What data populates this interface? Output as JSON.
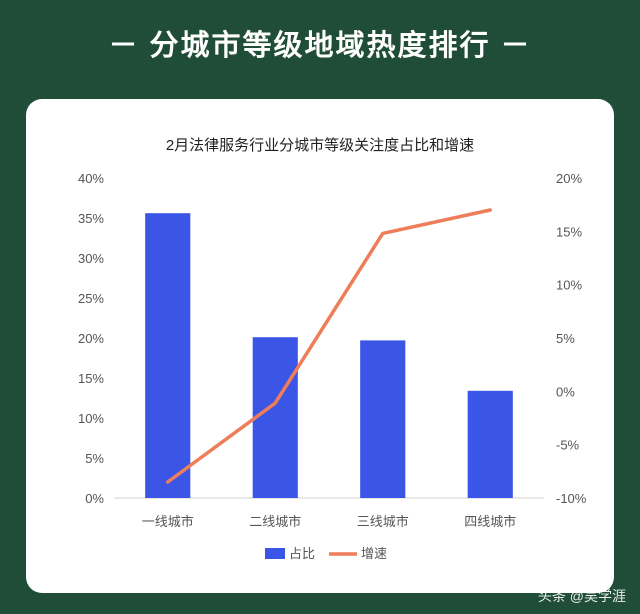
{
  "header": {
    "title": "－ 分城市等级地域热度排行 －"
  },
  "watermark": "头条 @吴学涯",
  "colors": {
    "background": "#1f4d38",
    "card": "#ffffff",
    "bar": "#3b55e6",
    "line": "#ee7d5a"
  },
  "chart_data": {
    "type": "bar",
    "title": "2月法律服务行业分城市等级关注度占比和增速",
    "categories": [
      "一线城市",
      "二线城市",
      "三线城市",
      "四线城市"
    ],
    "series": [
      {
        "name": "占比",
        "type": "bar",
        "axis": "left",
        "values": [
          0.356,
          0.201,
          0.197,
          0.134
        ]
      },
      {
        "name": "增速",
        "type": "line",
        "axis": "right",
        "values": [
          -0.085,
          -0.011,
          0.148,
          0.17
        ]
      }
    ],
    "y_left": {
      "ylim": [
        0,
        0.4
      ],
      "ticks": [
        "0%",
        "5%",
        "10%",
        "15%",
        "20%",
        "25%",
        "30%",
        "35%",
        "40%"
      ]
    },
    "y_right": {
      "ylim": [
        -0.1,
        0.2
      ],
      "ticks": [
        "-10%",
        "-5%",
        "0%",
        "5%",
        "10%",
        "15%",
        "20%"
      ]
    },
    "grid": false,
    "legend": "bottom"
  }
}
